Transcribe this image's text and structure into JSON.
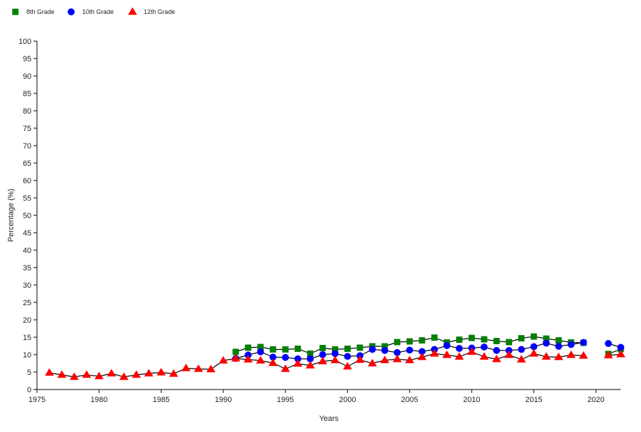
{
  "chart_data": {
    "type": "line",
    "title": "",
    "xlabel": "Years",
    "ylabel": "Percentage (%)",
    "xlim": [
      1975,
      2022
    ],
    "ylim": [
      0,
      100
    ],
    "x_ticks": [
      1975,
      1980,
      1985,
      1990,
      1995,
      2000,
      2005,
      2010,
      2015,
      2020
    ],
    "y_ticks": [
      0,
      5,
      10,
      15,
      20,
      25,
      30,
      35,
      40,
      45,
      50,
      55,
      60,
      65,
      70,
      75,
      80,
      85,
      90,
      95,
      100
    ],
    "grid": false,
    "legend": "top-left",
    "series": [
      {
        "name": "8th Grade",
        "color": "#008000",
        "marker": "square",
        "x": [
          1991,
          1992,
          1993,
          1994,
          1995,
          1996,
          1997,
          1998,
          1999,
          2000,
          2001,
          2002,
          2003,
          2004,
          2005,
          2006,
          2007,
          2008,
          2009,
          2010,
          2011,
          2012,
          2013,
          2014,
          2015,
          2016,
          2017,
          2018,
          2019,
          2021,
          2022
        ],
        "y": [
          10.8,
          12.0,
          12.2,
          11.5,
          11.5,
          11.7,
          10.3,
          11.9,
          11.5,
          11.7,
          12.0,
          12.4,
          12.4,
          13.6,
          13.8,
          14.1,
          14.9,
          13.5,
          14.3,
          14.8,
          14.4,
          13.9,
          13.6,
          14.7,
          15.2,
          14.6,
          14.1,
          13.5,
          13.4,
          10.2,
          11.6
        ]
      },
      {
        "name": "10th Grade",
        "color": "#0000ff",
        "marker": "circle",
        "x": [
          1991,
          1992,
          1993,
          1994,
          1995,
          1996,
          1997,
          1998,
          1999,
          2000,
          2001,
          2002,
          2003,
          2004,
          2005,
          2006,
          2007,
          2008,
          2009,
          2010,
          2011,
          2012,
          2013,
          2014,
          2015,
          2016,
          2017,
          2018,
          2019,
          2021,
          2022
        ],
        "y": [
          8.9,
          9.9,
          10.8,
          9.3,
          9.2,
          8.8,
          8.8,
          10.0,
          10.3,
          9.5,
          9.7,
          11.5,
          11.2,
          10.6,
          11.3,
          10.9,
          11.5,
          12.6,
          11.8,
          11.9,
          12.2,
          11.2,
          11.2,
          11.5,
          12.3,
          13.3,
          12.4,
          12.9,
          13.5,
          13.2,
          12.1
        ]
      },
      {
        "name": "12th Grade",
        "color": "#ff0000",
        "marker": "triangle",
        "x": [
          1976,
          1977,
          1978,
          1979,
          1980,
          1981,
          1982,
          1983,
          1984,
          1985,
          1986,
          1987,
          1988,
          1989,
          1990,
          1991,
          1992,
          1993,
          1994,
          1995,
          1996,
          1997,
          1998,
          1999,
          2000,
          2001,
          2002,
          2003,
          2004,
          2005,
          2006,
          2007,
          2008,
          2009,
          2010,
          2011,
          2012,
          2013,
          2014,
          2015,
          2016,
          2017,
          2018,
          2019,
          2021,
          2022
        ],
        "y": [
          4.8,
          4.2,
          3.6,
          4.2,
          3.8,
          4.6,
          3.6,
          4.2,
          4.6,
          4.9,
          4.5,
          6.1,
          5.9,
          5.8,
          8.3,
          8.9,
          8.6,
          8.3,
          7.6,
          5.9,
          7.4,
          6.9,
          8.1,
          8.4,
          6.6,
          8.5,
          7.5,
          8.4,
          8.7,
          8.4,
          9.3,
          10.3,
          9.9,
          9.4,
          10.8,
          9.4,
          8.7,
          9.9,
          8.6,
          10.3,
          9.4,
          9.3,
          9.9,
          9.7,
          9.8,
          10.1
        ]
      }
    ]
  }
}
